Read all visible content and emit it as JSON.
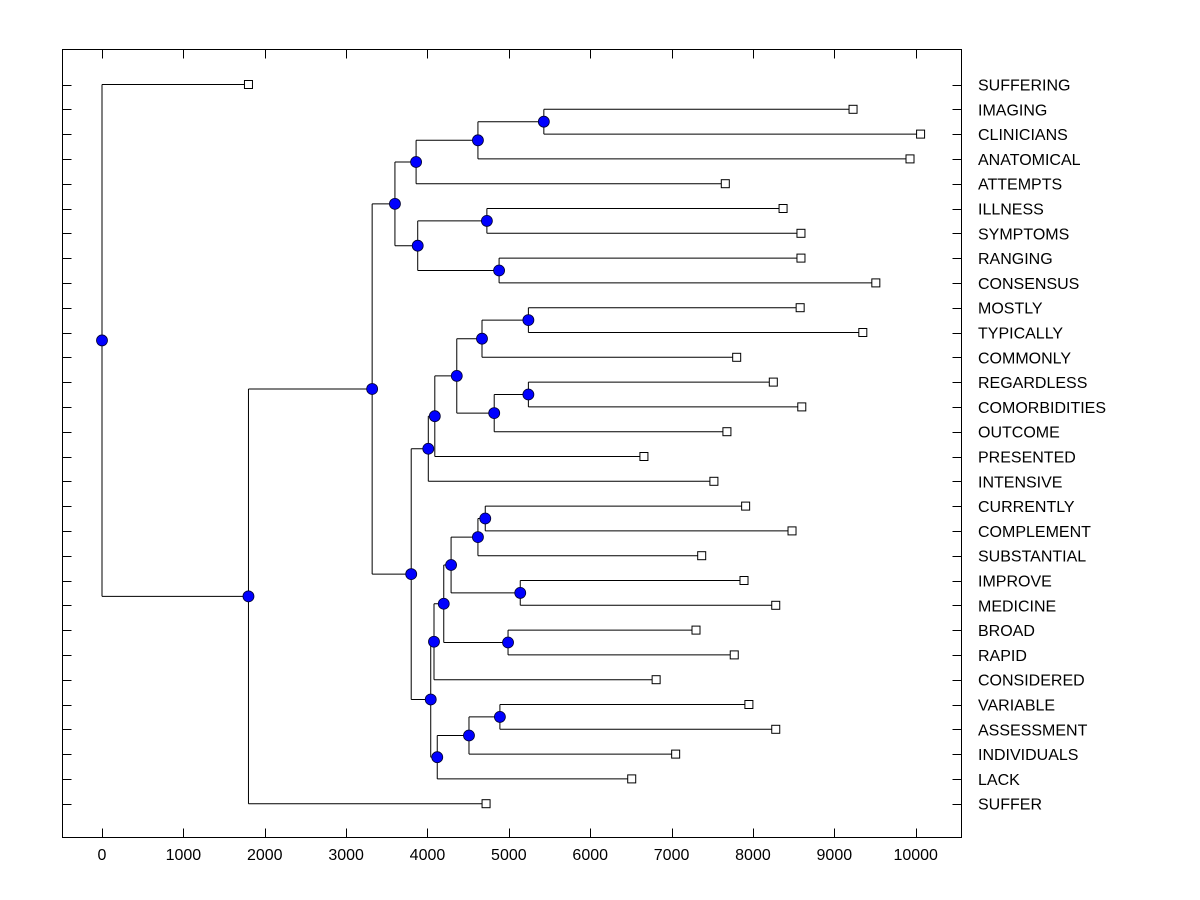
{
  "chart_data": {
    "type": "dendrogram",
    "title": "",
    "xlabel": "",
    "ylabel": "",
    "xlim": [
      -500,
      10550
    ],
    "xticks": [
      0,
      1000,
      2000,
      3000,
      4000,
      5000,
      6000,
      7000,
      8000,
      9000,
      10000
    ],
    "xtick_labels": [
      "0",
      "1000",
      "2000",
      "3000",
      "4000",
      "5000",
      "6000",
      "7000",
      "8000",
      "9000",
      "10000"
    ],
    "grid": false,
    "colors": {
      "node": "#0000ff",
      "line": "#000000",
      "leaf_fill": "#ffffff"
    },
    "leaves": [
      {
        "label": "SUFFERING",
        "value": 1800
      },
      {
        "label": "IMAGING",
        "value": 9230
      },
      {
        "label": "CLINICIANS",
        "value": 10060
      },
      {
        "label": "ANATOMICAL",
        "value": 9930
      },
      {
        "label": "ATTEMPTS",
        "value": 7660
      },
      {
        "label": "ILLNESS",
        "value": 8370
      },
      {
        "label": "SYMPTOMS",
        "value": 8590
      },
      {
        "label": "RANGING",
        "value": 8590
      },
      {
        "label": "CONSENSUS",
        "value": 9510
      },
      {
        "label": "MOSTLY",
        "value": 8580
      },
      {
        "label": "TYPICALLY",
        "value": 9350
      },
      {
        "label": "COMMONLY",
        "value": 7800
      },
      {
        "label": "REGARDLESS",
        "value": 8250
      },
      {
        "label": "COMORBIDITIES",
        "value": 8600
      },
      {
        "label": "OUTCOME",
        "value": 7680
      },
      {
        "label": "PRESENTED",
        "value": 6660
      },
      {
        "label": "INTENSIVE",
        "value": 7520
      },
      {
        "label": "CURRENTLY",
        "value": 7910
      },
      {
        "label": "COMPLEMENT",
        "value": 8480
      },
      {
        "label": "SUBSTANTIAL",
        "value": 7370
      },
      {
        "label": "IMPROVE",
        "value": 7890
      },
      {
        "label": "MEDICINE",
        "value": 8280
      },
      {
        "label": "BROAD",
        "value": 7300
      },
      {
        "label": "RAPID",
        "value": 7770
      },
      {
        "label": "CONSIDERED",
        "value": 6810
      },
      {
        "label": "VARIABLE",
        "value": 7950
      },
      {
        "label": "ASSESSMENT",
        "value": 8280
      },
      {
        "label": "INDIVIDUALS",
        "value": 7050
      },
      {
        "label": "LACK",
        "value": 6510
      },
      {
        "label": "SUFFER",
        "value": 4720
      }
    ],
    "tree": {
      "value": 0,
      "children": [
        {
          "leaf": 0
        },
        {
          "value": 1800,
          "children": [
            {
              "value": 3320,
              "children": [
                {
                  "value": 3600,
                  "children": [
                    {
                      "value": 3860,
                      "children": [
                        {
                          "value": 4620,
                          "children": [
                            {
                              "value": 5430,
                              "children": [
                                {
                                  "leaf": 1
                                },
                                {
                                  "leaf": 2
                                }
                              ]
                            },
                            {
                              "leaf": 3
                            }
                          ]
                        },
                        {
                          "leaf": 4
                        }
                      ]
                    },
                    {
                      "value": 3880,
                      "children": [
                        {
                          "value": 4730,
                          "children": [
                            {
                              "leaf": 5
                            },
                            {
                              "leaf": 6
                            }
                          ]
                        },
                        {
                          "value": 4880,
                          "children": [
                            {
                              "leaf": 7
                            },
                            {
                              "leaf": 8
                            }
                          ]
                        }
                      ]
                    }
                  ]
                },
                {
                  "value": 3800,
                  "children": [
                    {
                      "value": 4010,
                      "children": [
                        {
                          "value": 4090,
                          "children": [
                            {
                              "value": 4360,
                              "children": [
                                {
                                  "value": 4670,
                                  "children": [
                                    {
                                      "value": 5240,
                                      "children": [
                                        {
                                          "leaf": 9
                                        },
                                        {
                                          "leaf": 10
                                        }
                                      ]
                                    },
                                    {
                                      "leaf": 11
                                    }
                                  ]
                                },
                                {
                                  "value": 4820,
                                  "children": [
                                    {
                                      "value": 5240,
                                      "children": [
                                        {
                                          "leaf": 12
                                        },
                                        {
                                          "leaf": 13
                                        }
                                      ]
                                    },
                                    {
                                      "leaf": 14
                                    }
                                  ]
                                }
                              ]
                            },
                            {
                              "leaf": 15
                            }
                          ]
                        },
                        {
                          "leaf": 16
                        }
                      ]
                    },
                    {
                      "value": 4040,
                      "children": [
                        {
                          "value": 4080,
                          "children": [
                            {
                              "value": 4200,
                              "children": [
                                {
                                  "value": 4290,
                                  "children": [
                                    {
                                      "value": 4620,
                                      "children": [
                                        {
                                          "value": 4710,
                                          "children": [
                                            {
                                              "leaf": 17
                                            },
                                            {
                                              "leaf": 18
                                            }
                                          ]
                                        },
                                        {
                                          "leaf": 19
                                        }
                                      ]
                                    },
                                    {
                                      "value": 5140,
                                      "children": [
                                        {
                                          "leaf": 20
                                        },
                                        {
                                          "leaf": 21
                                        }
                                      ]
                                    }
                                  ]
                                },
                                {
                                  "value": 4990,
                                  "children": [
                                    {
                                      "leaf": 22
                                    },
                                    {
                                      "leaf": 23
                                    }
                                  ]
                                }
                              ]
                            },
                            {
                              "leaf": 24
                            }
                          ]
                        },
                        {
                          "value": 4120,
                          "children": [
                            {
                              "value": 4510,
                              "children": [
                                {
                                  "value": 4890,
                                  "children": [
                                    {
                                      "leaf": 25
                                    },
                                    {
                                      "leaf": 26
                                    }
                                  ]
                                },
                                {
                                  "leaf": 27
                                }
                              ]
                            },
                            {
                              "leaf": 28
                            }
                          ]
                        }
                      ]
                    }
                  ]
                }
              ]
            },
            {
              "leaf": 29
            }
          ]
        }
      ]
    }
  }
}
